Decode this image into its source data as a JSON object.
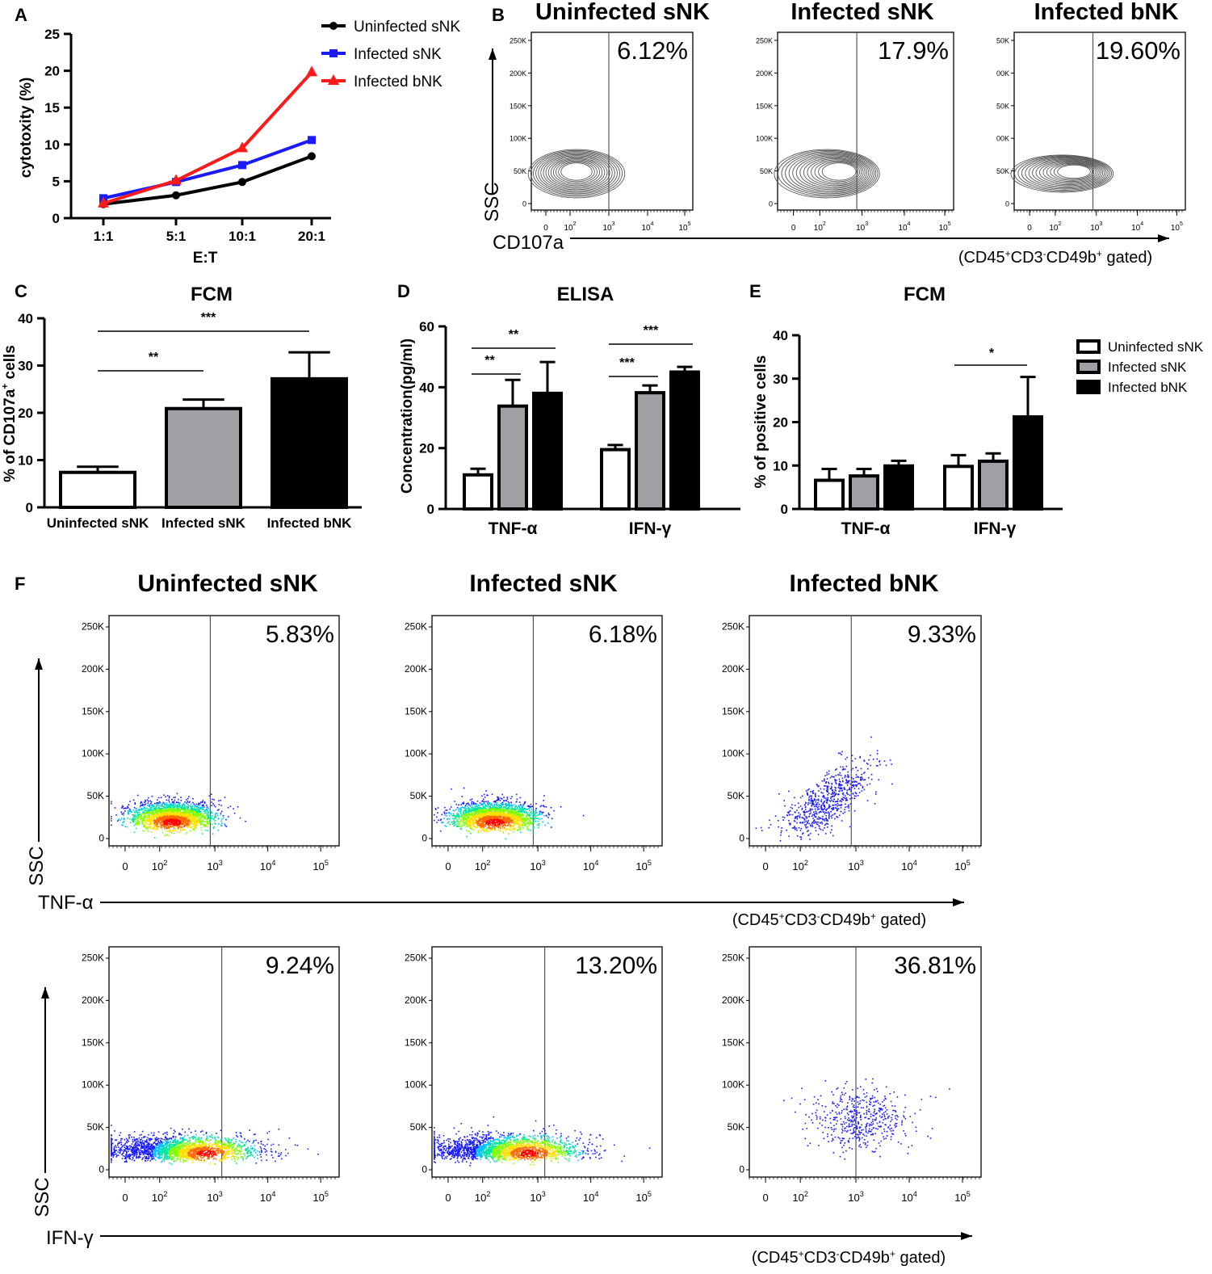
{
  "colors": {
    "black": "#000000",
    "blue": "#1a1aff",
    "red": "#ff1a1a",
    "gray": "#a0a0a4",
    "white": "#ffffff",
    "contour": "#555555"
  },
  "panel_labels": [
    "A",
    "B",
    "C",
    "D",
    "E",
    "F"
  ],
  "chart_data": [
    {
      "id": "A",
      "type": "line",
      "categories": [
        "1:1",
        "5:1",
        "10:1",
        "20:1"
      ],
      "series": [
        {
          "name": "Uninfected sNK",
          "color": "#000000",
          "marker": "circle",
          "values": [
            1.9,
            3.1,
            4.9,
            8.4
          ]
        },
        {
          "name": "Infected sNK",
          "color": "#1a1aff",
          "marker": "square",
          "values": [
            2.7,
            4.9,
            7.2,
            10.6
          ]
        },
        {
          "name": "Infected bNK",
          "color": "#ff1a1a",
          "marker": "triangle",
          "values": [
            2.0,
            5.1,
            9.5,
            19.8
          ]
        }
      ],
      "xlabel": "E:T",
      "ylabel": "cytotoxity (%)",
      "ylim": [
        0,
        25
      ],
      "yticks": [
        "0",
        "5",
        "10",
        "15",
        "20",
        "25"
      ],
      "legend": "top-right"
    },
    {
      "id": "B",
      "type": "scatter",
      "subtype": "flow-contour",
      "titles": [
        "Uninfected sNK",
        "Infected sNK",
        "Infected bNK"
      ],
      "percentages": [
        "6.12%",
        "17.9%",
        "19.60%"
      ],
      "yticks": [
        [
          "250K",
          "200K",
          "150K",
          "100K",
          "50K",
          "0"
        ],
        [
          "250K",
          "200K",
          "150K",
          "100K",
          "50K",
          "0"
        ],
        [
          "50K",
          "00K",
          "50K",
          "00K",
          "50K",
          "0"
        ]
      ],
      "xticks": [
        "0",
        "10",
        "10",
        "10",
        "10"
      ],
      "xtick_exponents": [
        "",
        "2",
        "3",
        "4",
        "5"
      ],
      "xlabel": "CD107a",
      "ylabel": "SSC",
      "gate_note": {
        "prefix": "(CD45",
        "s1": "+",
        "mid1": "CD3",
        "s2": "-",
        "mid2": "CD49b",
        "s3": "+",
        "suffix": " gated)"
      }
    },
    {
      "id": "C",
      "type": "bar",
      "title": "FCM",
      "categories": [
        "Uninfected sNK",
        "Infected sNK",
        "Infected bNK"
      ],
      "values": [
        7.4,
        20.9,
        27.2
      ],
      "errors": [
        1.2,
        1.9,
        5.6
      ],
      "fills": [
        "#ffffff",
        "#a0a0a4",
        "#000000"
      ],
      "ylabel_main": "% of CD107a",
      "ylabel_sup": "+",
      "ylabel_tail": " cells",
      "ylim": [
        0,
        40
      ],
      "yticks": [
        "0",
        "10",
        "20",
        "30",
        "40"
      ],
      "significance": [
        {
          "from": 0,
          "to": 1,
          "label": "**"
        },
        {
          "from": 0,
          "to": 2,
          "label": "***"
        }
      ]
    },
    {
      "id": "D",
      "type": "bar",
      "title": "ELISA",
      "categories": [
        "TNF-α",
        "IFN-γ"
      ],
      "series": [
        {
          "name": "Uninfected sNK",
          "fill": "#ffffff",
          "values": [
            11.2,
            19.5
          ],
          "errors": [
            2.0,
            1.5
          ]
        },
        {
          "name": "Infected sNK",
          "fill": "#a0a0a4",
          "values": [
            33.8,
            38.2
          ],
          "errors": [
            8.6,
            2.4
          ]
        },
        {
          "name": "Infected bNK",
          "fill": "#000000",
          "values": [
            38.0,
            45.0
          ],
          "errors": [
            10.3,
            1.7
          ]
        }
      ],
      "ylabel": "Concentration(pg/ml)",
      "ylim": [
        0,
        60
      ],
      "yticks": [
        "0",
        "20",
        "40",
        "60"
      ],
      "significance": [
        {
          "group": 0,
          "from": 0,
          "to": 1,
          "label": "**"
        },
        {
          "group": 0,
          "from": 0,
          "to": 2,
          "label": "**"
        },
        {
          "group": 1,
          "from": 0,
          "to": 1,
          "label": "***"
        },
        {
          "group": 1,
          "from": 0,
          "to": 2,
          "label": "***"
        }
      ]
    },
    {
      "id": "E",
      "type": "bar",
      "title": "FCM",
      "categories": [
        "TNF-α",
        "IFN-γ"
      ],
      "series": [
        {
          "name": "Uninfected sNK",
          "fill": "#ffffff",
          "values": [
            6.6,
            9.8
          ],
          "errors": [
            2.6,
            2.6
          ]
        },
        {
          "name": "Infected sNK",
          "fill": "#a0a0a4",
          "values": [
            7.6,
            11.0
          ],
          "errors": [
            1.6,
            1.8
          ]
        },
        {
          "name": "Infected bNK",
          "fill": "#000000",
          "values": [
            9.9,
            21.2
          ],
          "errors": [
            1.2,
            9.2
          ]
        }
      ],
      "ylabel": "% of positive cells",
      "ylim": [
        0,
        40
      ],
      "yticks": [
        "0",
        "10",
        "20",
        "30",
        "40"
      ],
      "legend": "right",
      "significance": [
        {
          "group": 1,
          "from": 0,
          "to": 2,
          "label": "*"
        }
      ]
    },
    {
      "id": "F",
      "type": "scatter",
      "subtype": "flow-pseudocolor",
      "titles": [
        "Uninfected sNK",
        "Infected sNK",
        "Infected bNK"
      ],
      "rows": [
        {
          "xlabel": "TNF-α",
          "ylabel": "SSC",
          "percentages": [
            "5.83%",
            "6.18%",
            "9.33%"
          ]
        },
        {
          "xlabel": "IFN-γ",
          "ylabel": "SSC",
          "percentages": [
            "9.24%",
            "13.20%",
            "36.81%"
          ]
        }
      ],
      "yticks": [
        "250K",
        "200K",
        "150K",
        "100K",
        "50K",
        "0"
      ],
      "xticks": [
        "0",
        "10",
        "10",
        "10",
        "10"
      ],
      "xtick_exponents": [
        "",
        "2",
        "3",
        "4",
        "5"
      ],
      "gate_note": {
        "prefix": "(CD45",
        "s1": "+",
        "mid1": "CD3",
        "s2": "-",
        "mid2": "CD49b",
        "s3": "+",
        "suffix": " gated)"
      }
    }
  ]
}
